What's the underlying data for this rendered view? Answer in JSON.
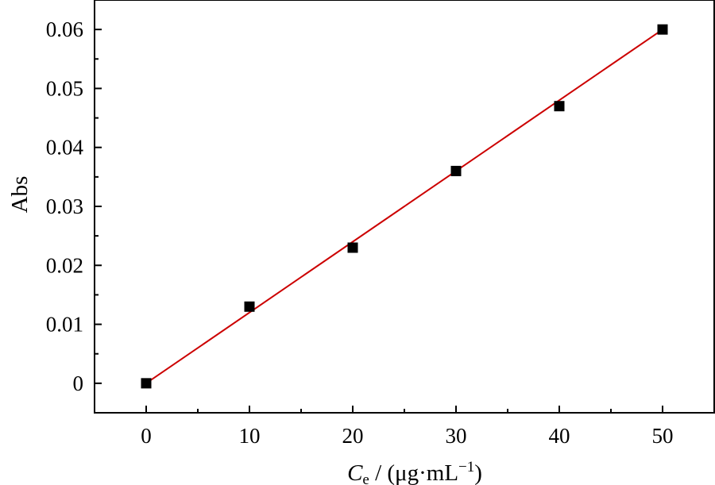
{
  "chart_data": {
    "type": "scatter",
    "title": "",
    "xlabel": {
      "symbol": "C",
      "subscript": "e",
      "unit_prefix": " / (μg·mL",
      "unit_exponent": "−1",
      "unit_suffix": ")"
    },
    "ylabel": "Abs",
    "xlim": [
      -5,
      55
    ],
    "ylim": [
      -0.005,
      0.065
    ],
    "x_ticks": [
      0,
      10,
      20,
      30,
      40,
      50
    ],
    "x_tick_labels": [
      "0",
      "10",
      "20",
      "30",
      "40",
      "50"
    ],
    "y_ticks": [
      0,
      0.01,
      0.02,
      0.03,
      0.04,
      0.05,
      0.06
    ],
    "y_tick_labels": [
      "0",
      "0.01",
      "0.02",
      "0.03",
      "0.04",
      "0.05",
      "0.06"
    ],
    "grid": false,
    "legend": "none",
    "series": [
      {
        "kind": "points",
        "marker": "square",
        "color": "#000000",
        "x": [
          0,
          10,
          20,
          30,
          40,
          50
        ],
        "y": [
          0,
          0.013,
          0.023,
          0.036,
          0.047,
          0.06
        ]
      },
      {
        "kind": "fit-line",
        "color": "#cc0000",
        "x": [
          0,
          50
        ],
        "y": [
          0,
          0.06
        ]
      }
    ]
  }
}
